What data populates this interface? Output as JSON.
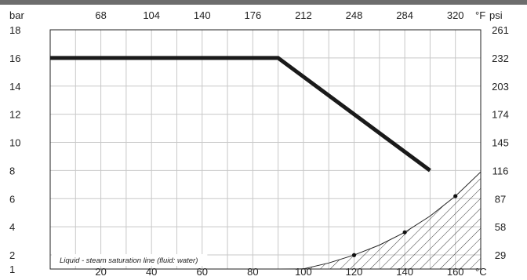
{
  "chart_data": {
    "type": "line",
    "title": "",
    "x_axis": {
      "label": "°C",
      "range": [
        0,
        170
      ],
      "ticks": [
        20,
        40,
        60,
        80,
        100,
        120,
        140,
        160
      ]
    },
    "x2_axis": {
      "label": "°F",
      "range": [
        32,
        338
      ],
      "ticks": [
        68,
        104,
        140,
        176,
        212,
        248,
        284,
        320
      ]
    },
    "y_axis": {
      "label": "bar",
      "range": [
        1,
        18
      ],
      "ticks": [
        1,
        2,
        4,
        6,
        8,
        10,
        12,
        14,
        16,
        18
      ]
    },
    "y2_axis": {
      "label": "psi",
      "ticks": [
        {
          "label": "29",
          "bar": 2
        },
        {
          "label": "58",
          "bar": 4
        },
        {
          "label": "87",
          "bar": 6
        },
        {
          "label": "116",
          "bar": 8
        },
        {
          "label": "145",
          "bar": 10
        },
        {
          "label": "174",
          "bar": 12
        },
        {
          "label": "203",
          "bar": 14
        },
        {
          "label": "232",
          "bar": 16
        },
        {
          "label": "261",
          "bar": 18
        }
      ]
    },
    "grid": true,
    "series": [
      {
        "x": [
          0,
          90,
          150
        ],
        "y": [
          16,
          16,
          8
        ],
        "color": "#1a1a1a"
      }
    ],
    "saturation_line": {
      "label": "Liquid - steam saturation line (fluid: water)",
      "x": [
        0,
        90,
        100,
        110,
        120,
        130,
        140,
        150,
        160,
        170
      ],
      "y": [
        1,
        1,
        1.01,
        1.43,
        1.99,
        2.7,
        3.61,
        4.76,
        6.18,
        7.9
      ],
      "markers": [
        {
          "x": 120,
          "y": 1.99
        },
        {
          "x": 140,
          "y": 3.61
        },
        {
          "x": 160,
          "y": 6.18
        }
      ],
      "fill": "hatched"
    }
  }
}
